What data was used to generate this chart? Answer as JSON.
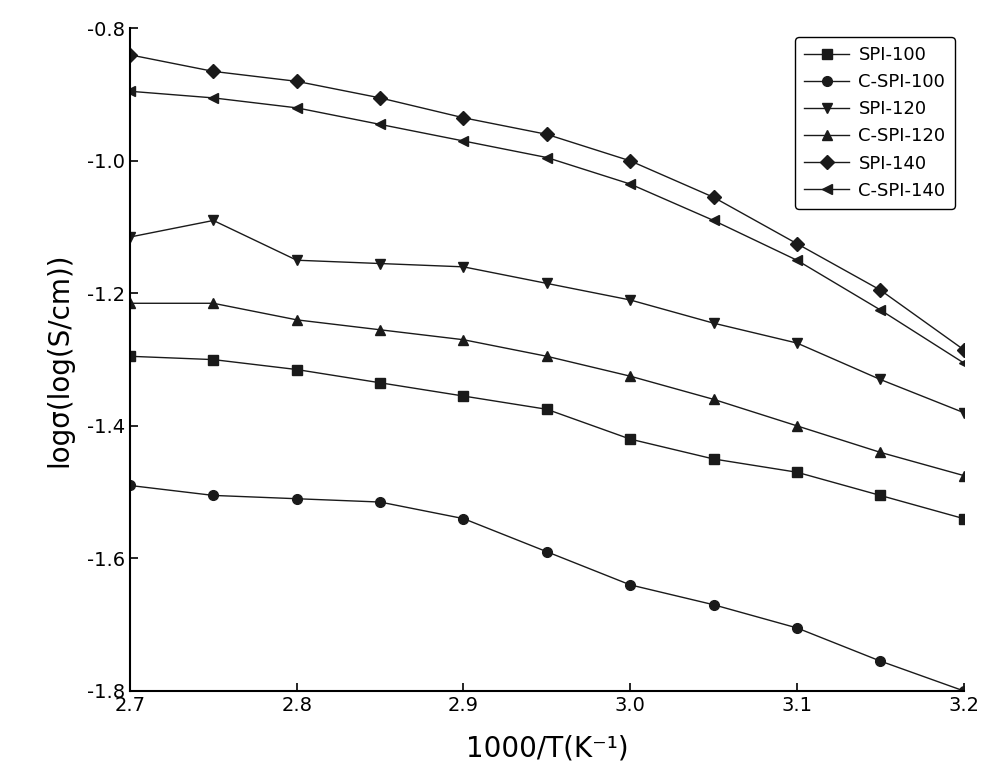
{
  "x_values": [
    2.7,
    2.75,
    2.8,
    2.85,
    2.9,
    2.95,
    3.0,
    3.05,
    3.1,
    3.15,
    3.2
  ],
  "series": {
    "SPI-100": {
      "y": [
        -1.295,
        -1.3,
        -1.315,
        -1.335,
        -1.355,
        -1.375,
        -1.42,
        -1.45,
        -1.47,
        -1.505,
        -1.54
      ],
      "marker": "s",
      "label": "SPI-100"
    },
    "C-SPI-100": {
      "y": [
        -1.49,
        -1.505,
        -1.51,
        -1.515,
        -1.54,
        -1.59,
        -1.64,
        -1.67,
        -1.705,
        -1.755,
        -1.8
      ],
      "marker": "o",
      "label": "C-SPI-100"
    },
    "SPI-120": {
      "y": [
        -1.115,
        -1.09,
        -1.15,
        -1.155,
        -1.16,
        -1.185,
        -1.21,
        -1.245,
        -1.275,
        -1.33,
        -1.38
      ],
      "marker": "v",
      "label": "SPI-120"
    },
    "C-SPI-120": {
      "y": [
        -1.215,
        -1.215,
        -1.24,
        -1.255,
        -1.27,
        -1.295,
        -1.325,
        -1.36,
        -1.4,
        -1.44,
        -1.475
      ],
      "marker": "^",
      "label": "C-SPI-120"
    },
    "SPI-140": {
      "y": [
        -0.84,
        -0.865,
        -0.88,
        -0.905,
        -0.935,
        -0.96,
        -1.0,
        -1.055,
        -1.125,
        -1.195,
        -1.285
      ],
      "marker": "D",
      "label": "SPI-140"
    },
    "C-SPI-140": {
      "y": [
        -0.895,
        -0.905,
        -0.92,
        -0.945,
        -0.97,
        -0.995,
        -1.035,
        -1.09,
        -1.15,
        -1.225,
        -1.305
      ],
      "marker": "<",
      "label": "C-SPI-140"
    }
  },
  "xlabel": "1000/T(K⁻¹)",
  "ylabel": "logσ(log(S/cm))",
  "xlim": [
    2.7,
    3.2
  ],
  "ylim": [
    -1.8,
    -0.8
  ],
  "xticks": [
    2.7,
    2.8,
    2.9,
    3.0,
    3.1,
    3.2
  ],
  "yticks": [
    -1.8,
    -1.6,
    -1.4,
    -1.2,
    -1.0,
    -0.8
  ],
  "marker_color": "#1a1a1a",
  "marker_size": 7,
  "linewidth": 1.0,
  "legend_fontsize": 13,
  "axis_fontsize": 20,
  "tick_fontsize": 14
}
